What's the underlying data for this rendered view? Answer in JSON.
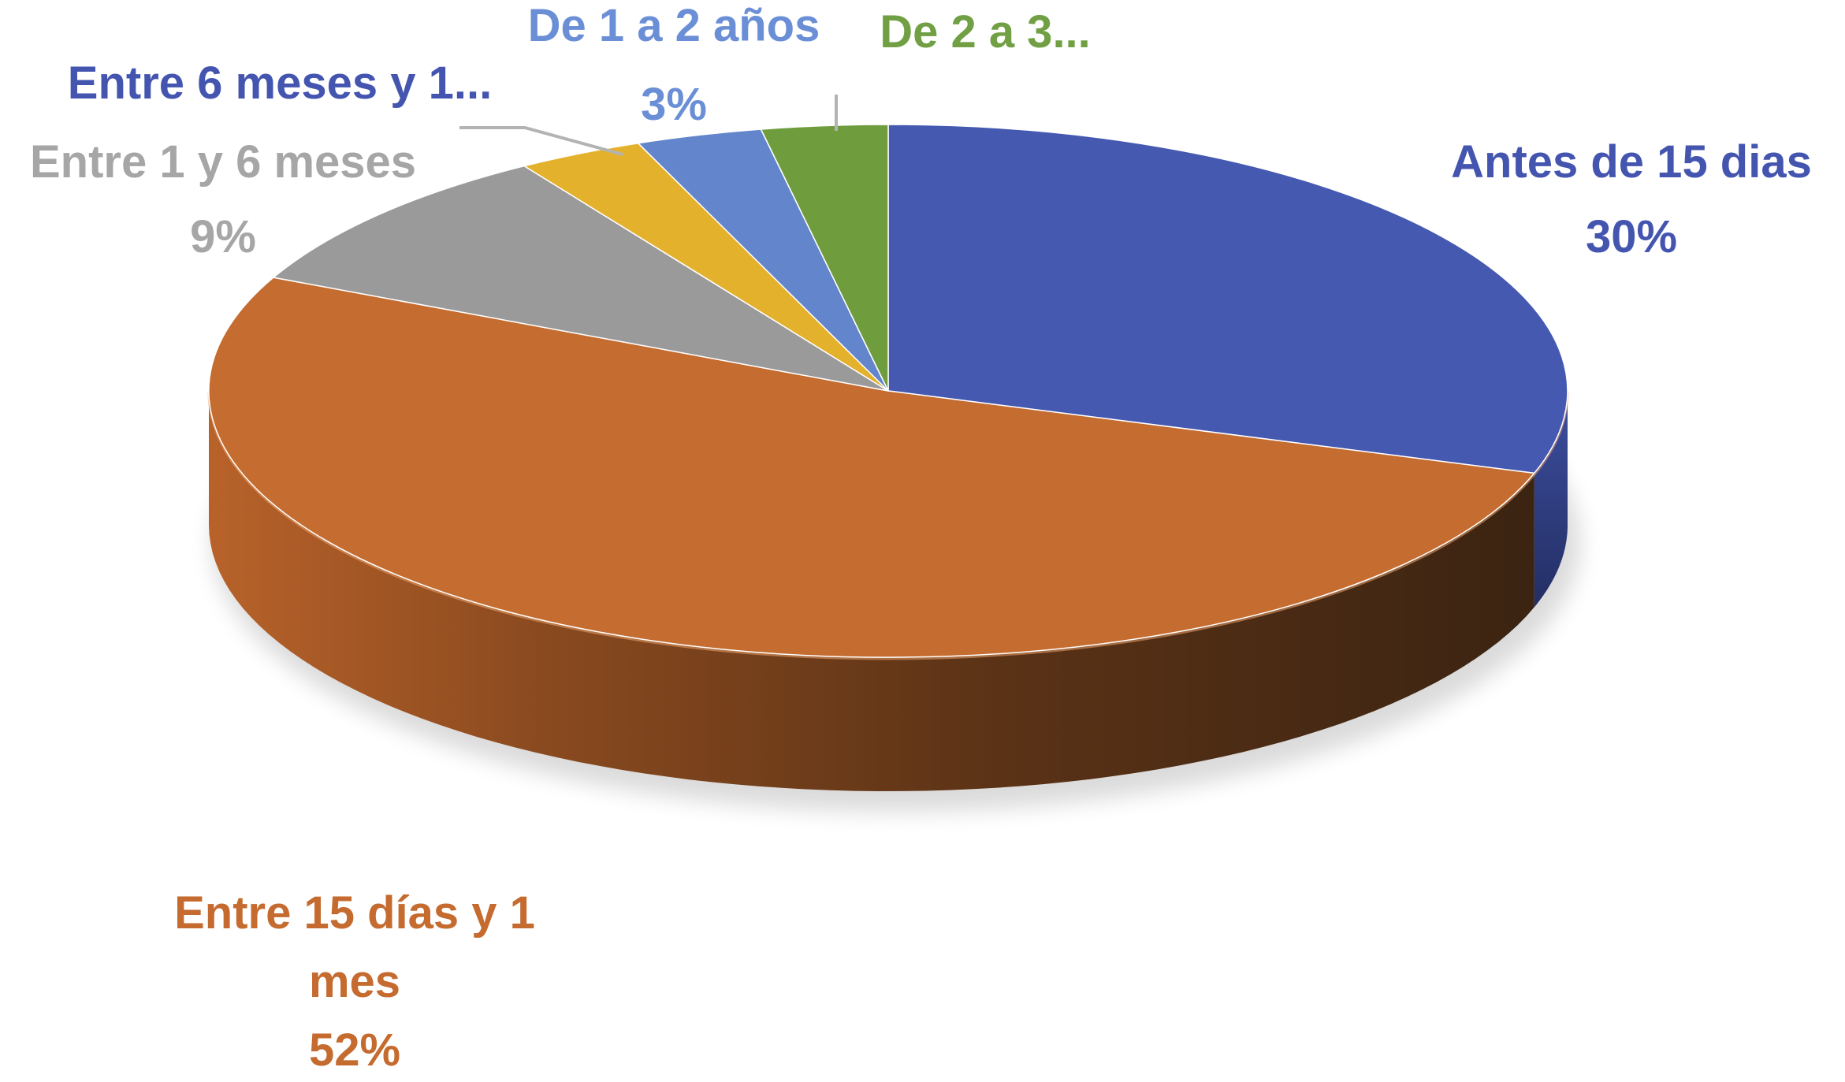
{
  "chart_data": {
    "type": "pie",
    "style": "3d-exploded-perspective",
    "title": "",
    "legend": "none",
    "slices": [
      {
        "label": "Antes de 15 dias",
        "label_lines": [
          "Antes de 15 dias"
        ],
        "value": 30,
        "value_label": "30%",
        "color": "#4659b1",
        "label_color": "#4455b0"
      },
      {
        "label": "Entre 15 días y 1 mes",
        "label_lines": [
          "Entre 15 días y 1",
          "mes"
        ],
        "value": 52,
        "value_label": "52%",
        "color": "#c56c30",
        "label_color": "#c56b2f"
      },
      {
        "label": "Entre 1 y 6 meses",
        "label_lines": [
          "Entre 1 y 6 meses"
        ],
        "value": 9,
        "value_label": "9%",
        "color": "#9a9a9a",
        "label_color": "#a6a6a6"
      },
      {
        "label": "Entre 6 meses y 1...",
        "label_lines": [
          "Entre 6 meses y 1..."
        ],
        "value": 3,
        "value_label": "",
        "color": "#e4b12c",
        "label_color": "#4455b0"
      },
      {
        "label": "De 1 a 2 años",
        "label_lines": [
          "De 1 a 2 años"
        ],
        "value": 3,
        "value_label": "3%",
        "color": "#6385cc",
        "label_color": "#6b8fd6"
      },
      {
        "label": "De 2 a 3...",
        "label_lines": [
          "De 2 a 3..."
        ],
        "value": 3,
        "value_label": "",
        "color": "#6f9d3e",
        "label_color": "#71a044"
      }
    ]
  }
}
